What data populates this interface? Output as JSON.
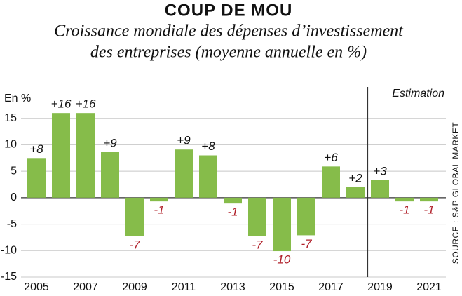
{
  "chart_data": {
    "type": "bar",
    "title": "COUP DE MOU",
    "subtitle": [
      "Croissance mondiale des dépenses d’investissement",
      "des entreprises  (moyenne annuelle en %)"
    ],
    "y_label": "En %",
    "annotation": {
      "text": "Estimation",
      "from": "2019"
    },
    "source": "SOURCE : S&P GLOBAL MARKET",
    "categories": [
      "2005",
      null,
      "2007",
      null,
      "2009",
      null,
      "2011",
      null,
      "2013",
      null,
      "2015",
      null,
      "2017",
      null,
      "2019",
      null,
      "2021"
    ],
    "values": [
      7.5,
      16,
      16,
      8.6,
      -7.3,
      -0.7,
      9.1,
      8,
      -1.1,
      -7.3,
      -10.1,
      -7.1,
      5.9,
      2,
      3.3,
      -0.7,
      -0.7
    ],
    "value_labels": [
      "+8",
      "+16",
      "+16",
      "+9",
      "-7",
      "-1",
      "+9",
      "+8",
      "-1",
      "-7",
      "-10",
      "-7",
      "+6",
      "+2",
      "+3",
      "-1",
      "-1"
    ],
    "color": "#86bc4a",
    "negative_label_color": "#b0202a",
    "ylim": [
      -15,
      20
    ],
    "yticks": [
      15,
      10,
      5,
      0,
      -5,
      -10,
      -15
    ],
    "grid": true
  }
}
